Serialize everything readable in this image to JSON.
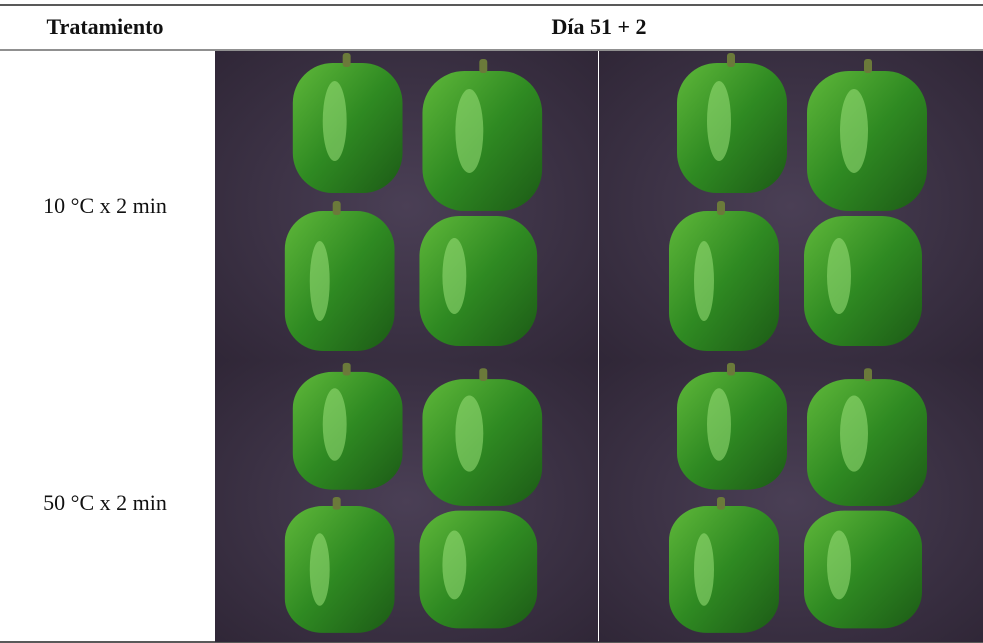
{
  "table": {
    "headers": [
      "Tratamiento",
      "Día 51 + 2"
    ],
    "rows": [
      [
        "10 °C x 2 min"
      ],
      [
        "50 °C x 2 min"
      ]
    ]
  }
}
